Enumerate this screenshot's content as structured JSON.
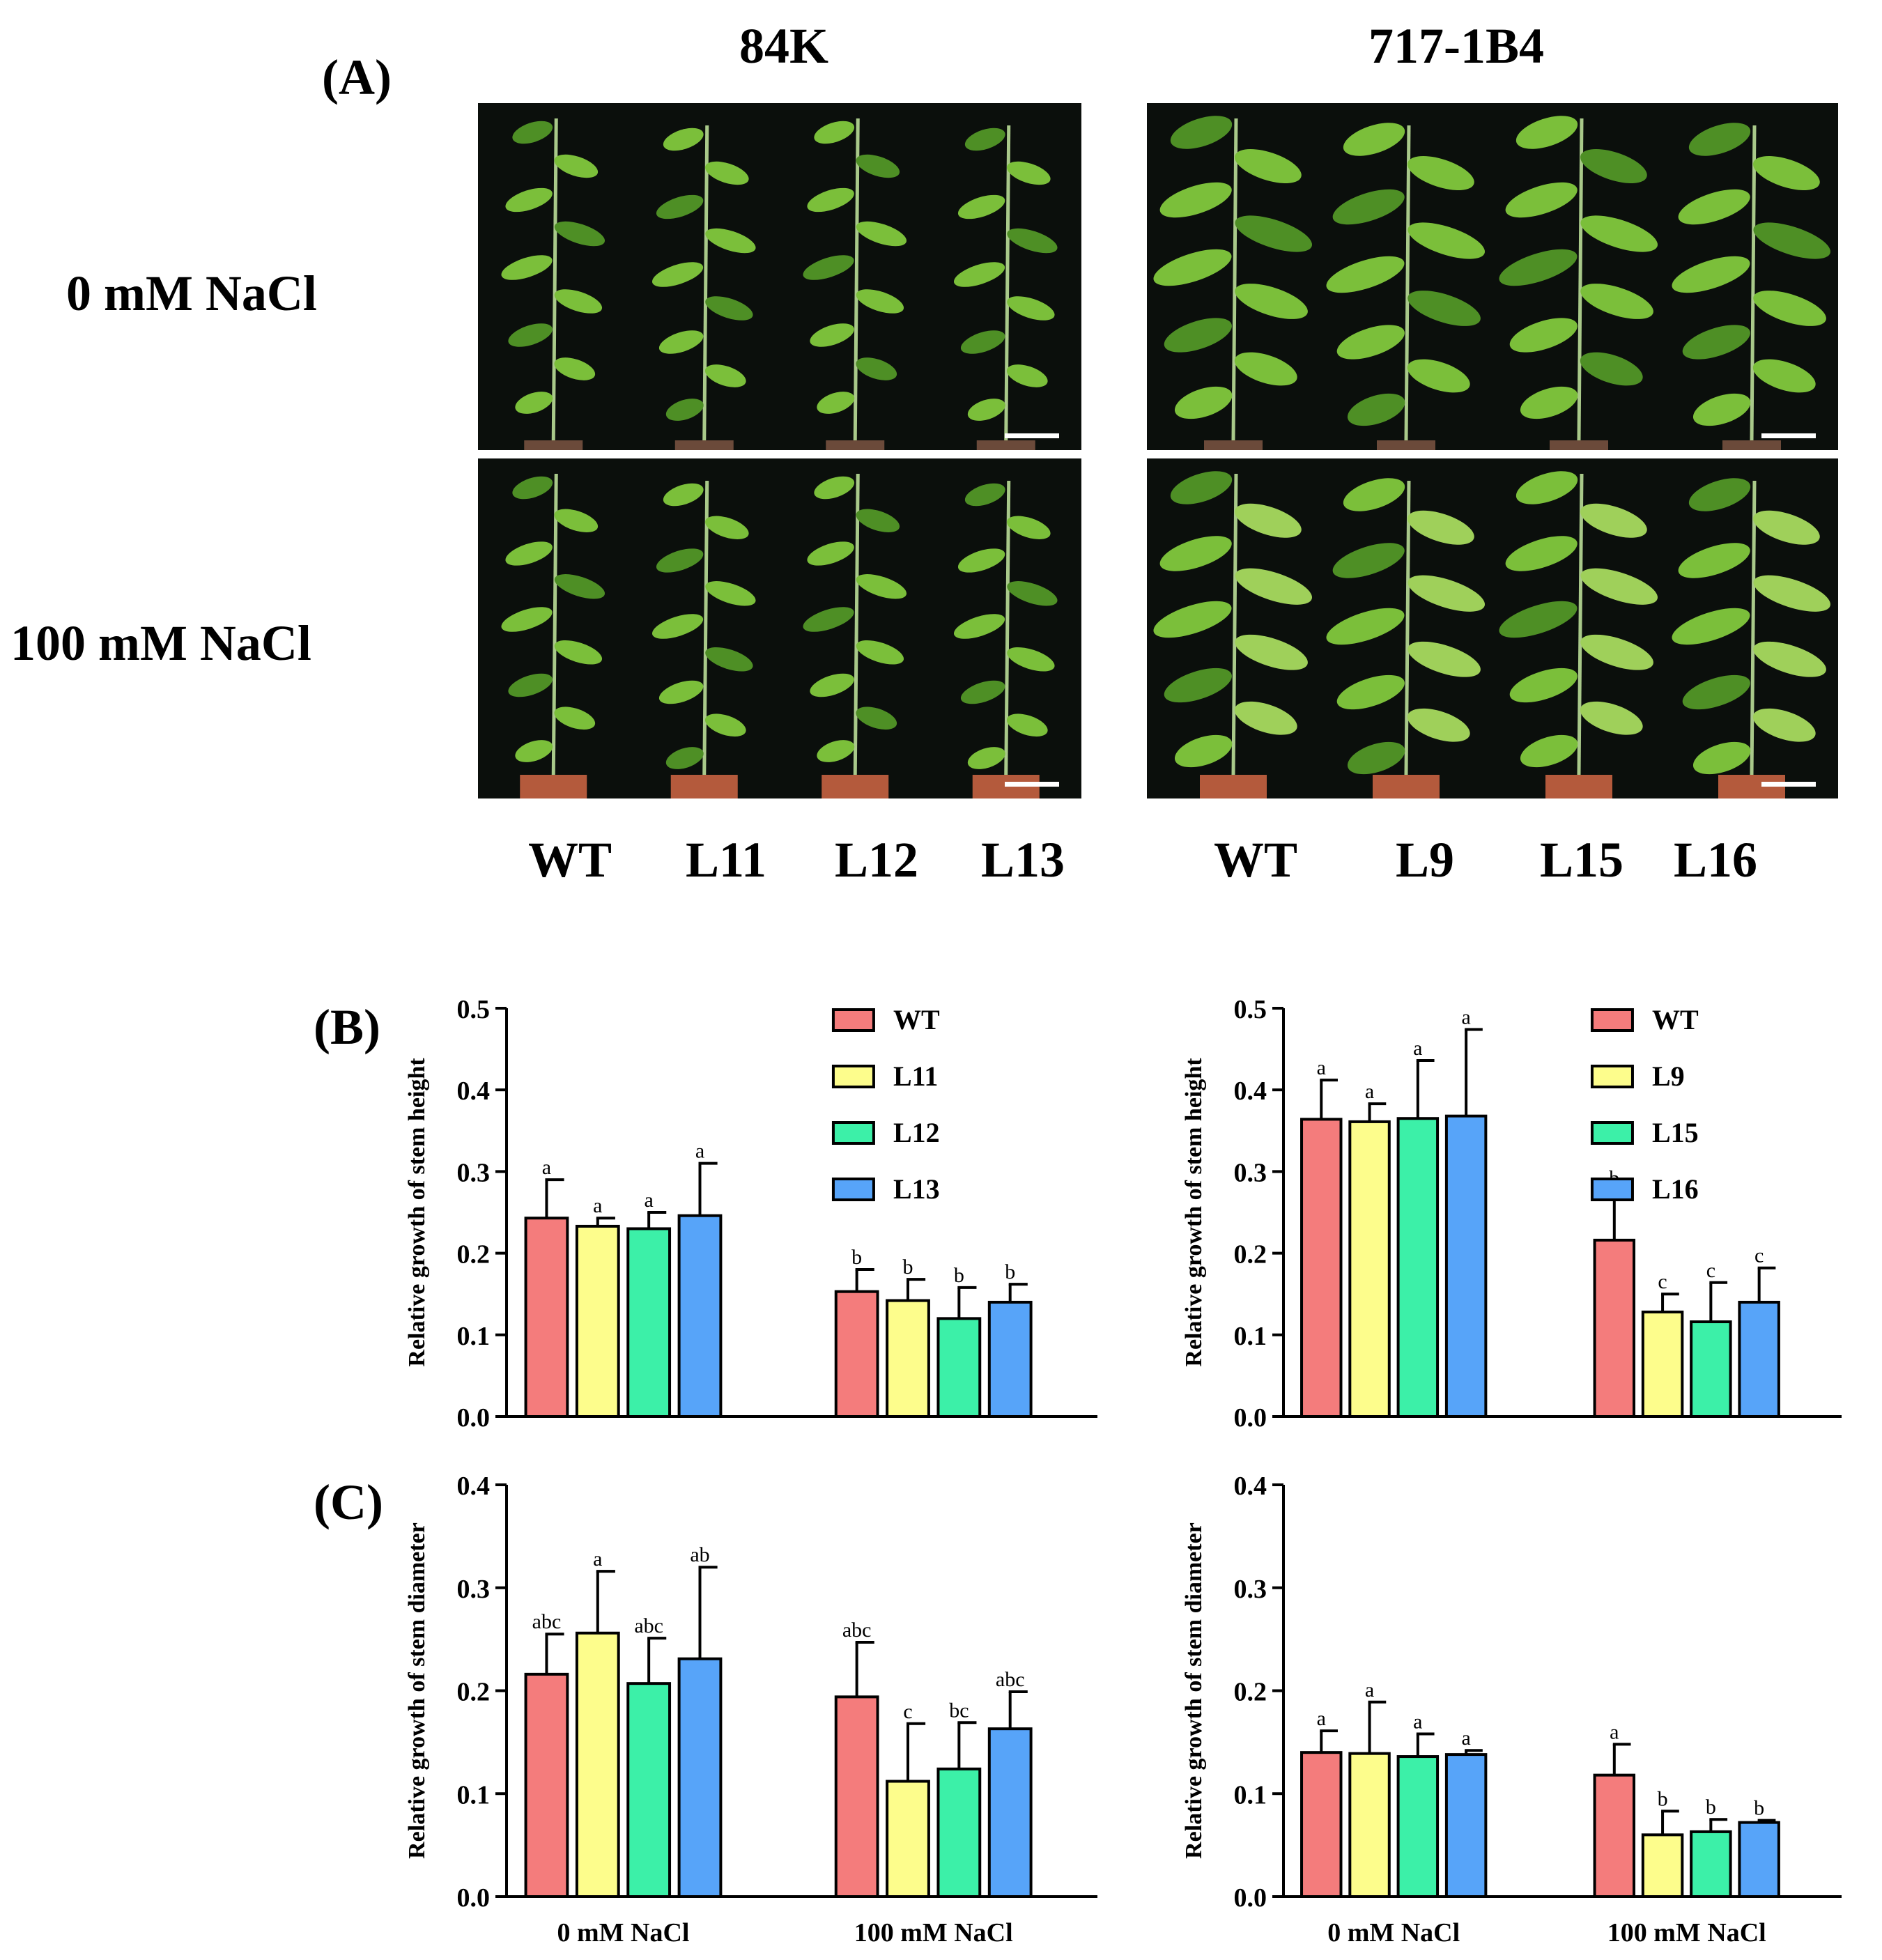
{
  "panel_a": {
    "label": "(A)",
    "groups": [
      {
        "title": "84K",
        "lines": [
          "WT",
          "L11",
          "L12",
          "L13"
        ]
      },
      {
        "title": "717-1B4",
        "lines": [
          "WT",
          "L9",
          "L15",
          "L16"
        ]
      }
    ],
    "rows": [
      "0 mM NaCl",
      "100 mM NaCl"
    ],
    "photo_colors": {
      "background": "#0b0f0c",
      "leaf": "#7bbf3a",
      "leaf_dark": "#4e8f25",
      "stem": "#a9c98a",
      "pot": "#b45a3c",
      "scale_bar": "#ffffff"
    }
  },
  "panel_b_label": "(B)",
  "panel_c_label": "(C)",
  "colors": {
    "WT": "#f47c7c",
    "line1": "#fdfd8c",
    "line2": "#3cf0a8",
    "line3": "#57a4f9"
  },
  "chart_data": [
    {
      "id": "B-84K",
      "type": "bar",
      "categories": [
        "",
        ""
      ],
      "ylabel": "Relative growth of stem height",
      "ylim": [
        0,
        0.5
      ],
      "yticks": [
        "0.0",
        "0.1",
        "0.2",
        "0.3",
        "0.4",
        "0.5"
      ],
      "legend": {
        "placement": "top-right",
        "entries": [
          "WT",
          "L11",
          "L12",
          "L13"
        ]
      },
      "series": [
        {
          "name": "WT",
          "values": [
            0.243,
            0.153
          ],
          "errors": [
            0.047,
            0.027
          ],
          "letters": [
            "a",
            "b"
          ]
        },
        {
          "name": "L11",
          "values": [
            0.233,
            0.142
          ],
          "errors": [
            0.01,
            0.026
          ],
          "letters": [
            "a",
            "b"
          ]
        },
        {
          "name": "L12",
          "values": [
            0.23,
            0.12
          ],
          "errors": [
            0.02,
            0.038
          ],
          "letters": [
            "a",
            "b"
          ]
        },
        {
          "name": "L13",
          "values": [
            0.246,
            0.14
          ],
          "errors": [
            0.064,
            0.022
          ],
          "letters": [
            "a",
            "b"
          ]
        }
      ]
    },
    {
      "id": "B-717",
      "type": "bar",
      "categories": [
        "",
        ""
      ],
      "ylabel": "Relative growth of stem height",
      "ylim": [
        0,
        0.5
      ],
      "yticks": [
        "0.0",
        "0.1",
        "0.2",
        "0.3",
        "0.4",
        "0.5"
      ],
      "legend": {
        "placement": "top-right",
        "entries": [
          "WT",
          "L9",
          "L15",
          "L16"
        ]
      },
      "series": [
        {
          "name": "WT",
          "values": [
            0.364,
            0.216
          ],
          "errors": [
            0.048,
            0.061
          ],
          "letters": [
            "a",
            "b"
          ]
        },
        {
          "name": "L9",
          "values": [
            0.361,
            0.128
          ],
          "errors": [
            0.022,
            0.022
          ],
          "letters": [
            "a",
            "c"
          ]
        },
        {
          "name": "L15",
          "values": [
            0.365,
            0.116
          ],
          "errors": [
            0.071,
            0.048
          ],
          "letters": [
            "a",
            "c"
          ]
        },
        {
          "name": "L16",
          "values": [
            0.368,
            0.14
          ],
          "errors": [
            0.106,
            0.042
          ],
          "letters": [
            "a",
            "c"
          ]
        }
      ]
    },
    {
      "id": "C-84K",
      "type": "bar",
      "categories": [
        "0 mM NaCl",
        "100 mM NaCl"
      ],
      "ylabel": "Relative growth of stem diameter",
      "ylim": [
        0,
        0.4
      ],
      "yticks": [
        "0.0",
        "0.1",
        "0.2",
        "0.3",
        "0.4"
      ],
      "series": [
        {
          "name": "WT",
          "values": [
            0.216,
            0.194
          ],
          "errors": [
            0.039,
            0.053
          ],
          "letters": [
            "abc",
            "abc"
          ]
        },
        {
          "name": "L11",
          "values": [
            0.256,
            0.112
          ],
          "errors": [
            0.06,
            0.056
          ],
          "letters": [
            "a",
            "c"
          ]
        },
        {
          "name": "L12",
          "values": [
            0.207,
            0.124
          ],
          "errors": [
            0.044,
            0.045
          ],
          "letters": [
            "abc",
            "bc"
          ]
        },
        {
          "name": "L13",
          "values": [
            0.231,
            0.163
          ],
          "errors": [
            0.089,
            0.036
          ],
          "letters": [
            "ab",
            "abc"
          ]
        }
      ]
    },
    {
      "id": "C-717",
      "type": "bar",
      "categories": [
        "0 mM NaCl",
        "100 mM NaCl"
      ],
      "ylabel": "Relative growth of stem diameter",
      "ylim": [
        0,
        0.4
      ],
      "yticks": [
        "0.0",
        "0.1",
        "0.2",
        "0.3",
        "0.4"
      ],
      "series": [
        {
          "name": "WT",
          "values": [
            0.14,
            0.118
          ],
          "errors": [
            0.021,
            0.03
          ],
          "letters": [
            "a",
            "a"
          ]
        },
        {
          "name": "L9",
          "values": [
            0.139,
            0.06
          ],
          "errors": [
            0.05,
            0.023
          ],
          "letters": [
            "a",
            "b"
          ]
        },
        {
          "name": "L15",
          "values": [
            0.136,
            0.063
          ],
          "errors": [
            0.022,
            0.012
          ],
          "letters": [
            "a",
            "b"
          ]
        },
        {
          "name": "L16",
          "values": [
            0.138,
            0.072
          ],
          "errors": [
            0.004,
            0.002
          ],
          "letters": [
            "a",
            "b"
          ]
        }
      ]
    }
  ]
}
